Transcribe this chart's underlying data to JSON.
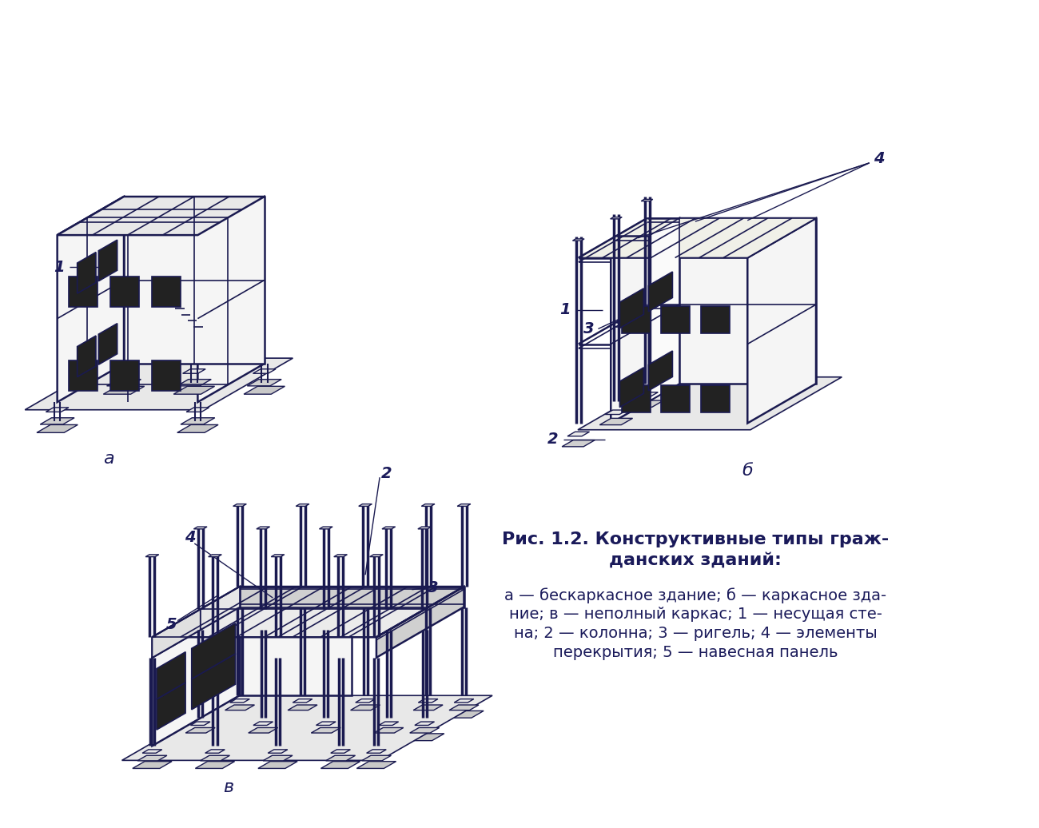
{
  "bg_color": "#ffffff",
  "line_color": "#1a1a50",
  "fill_light": "#f5f5f5",
  "fill_mid": "#e8e8e8",
  "fill_dark": "#d0d0d0",
  "fill_base": "#c8c8c8",
  "fill_win": "#222222",
  "label_a": "а",
  "label_b": "б",
  "label_v": "в",
  "title_line1": "Рис. 1.2. Конструктивные типы граж-",
  "title_line2": "данских зданий:",
  "caption_line1": "а — бескаркасное здание; б — каркасное зда-",
  "caption_line2": "ние; в — неполный каркас; 1 — несущая сте-",
  "caption_line3": "на; 2 — колонна; 3 — ригель; 4 — элементы",
  "caption_line4": "перекрытия; 5 — навесная панель",
  "text_color": "#1a1a5a"
}
